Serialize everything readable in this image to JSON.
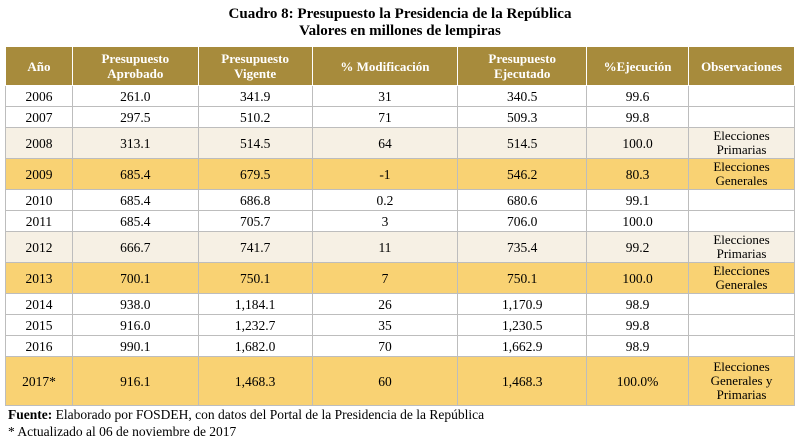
{
  "caption": {
    "title": "Cuadro 8: Presupuesto la Presidencia de la República",
    "subtitle": "Valores en millones de lempiras"
  },
  "table": {
    "headers": [
      [
        "Año"
      ],
      [
        "Presupuesto",
        "Aprobado"
      ],
      [
        "Presupuesto",
        "Vigente"
      ],
      [
        "% Modificación"
      ],
      [
        "Presupuesto",
        "Ejecutado"
      ],
      [
        "%Ejecución"
      ],
      [
        "Observaciones"
      ]
    ],
    "rows": [
      {
        "year": "2006",
        "approved": "261.0",
        "current": "341.9",
        "modification": "31",
        "executed": "340.5",
        "execution": "99.6",
        "notes": [],
        "style": "plain"
      },
      {
        "year": "2007",
        "approved": "297.5",
        "current": "510.2",
        "modification": "71",
        "executed": "509.3",
        "execution": "99.8",
        "notes": [],
        "style": "plain"
      },
      {
        "year": "2008",
        "approved": "313.1",
        "current": "514.5",
        "modification": "64",
        "executed": "514.5",
        "execution": "100.0",
        "notes": [
          "Elecciones",
          "Primarias"
        ],
        "style": "shade"
      },
      {
        "year": "2009",
        "approved": "685.4",
        "current": "679.5",
        "modification": "-1",
        "executed": "546.2",
        "execution": "80.3",
        "notes": [
          "Elecciones",
          "Generales"
        ],
        "style": "gold"
      },
      {
        "year": "2010",
        "approved": "685.4",
        "current": "686.8",
        "modification": "0.2",
        "executed": "680.6",
        "execution": "99.1",
        "notes": [],
        "style": "plain"
      },
      {
        "year": "2011",
        "approved": "685.4",
        "current": "705.7",
        "modification": "3",
        "executed": "706.0",
        "execution": "100.0",
        "notes": [],
        "style": "plain"
      },
      {
        "year": "2012",
        "approved": "666.7",
        "current": "741.7",
        "modification": "11",
        "executed": "735.4",
        "execution": "99.2",
        "notes": [
          "Elecciones",
          "Primarias"
        ],
        "style": "shade"
      },
      {
        "year": "2013",
        "approved": "700.1",
        "current": "750.1",
        "modification": "7",
        "executed": "750.1",
        "execution": "100.0",
        "notes": [
          "Elecciones",
          "Generales"
        ],
        "style": "gold"
      },
      {
        "year": "2014",
        "approved": "938.0",
        "current": "1,184.1",
        "modification": "26",
        "executed": "1,170.9",
        "execution": "98.9",
        "notes": [],
        "style": "plain"
      },
      {
        "year": "2015",
        "approved": "916.0",
        "current": "1,232.7",
        "modification": "35",
        "executed": "1,230.5",
        "execution": "99.8",
        "notes": [],
        "style": "plain"
      },
      {
        "year": "2016",
        "approved": "990.1",
        "current": "1,682.0",
        "modification": "70",
        "executed": "1,662.9",
        "execution": "98.9",
        "notes": [],
        "style": "plain"
      },
      {
        "year": "2017*",
        "approved": "916.1",
        "current": "1,468.3",
        "modification": "60",
        "executed": "1,468.3",
        "execution": "100.0%",
        "notes": [
          "Elecciones",
          "Generales y",
          "Primarias"
        ],
        "style": "gold big"
      }
    ]
  },
  "footer": {
    "source_label": "Fuente:",
    "source_text": " Elaborado por FOSDEH, con datos del Portal de la Presidencia de la República",
    "note": "* Actualizado al 06 de noviembre de 2017"
  }
}
